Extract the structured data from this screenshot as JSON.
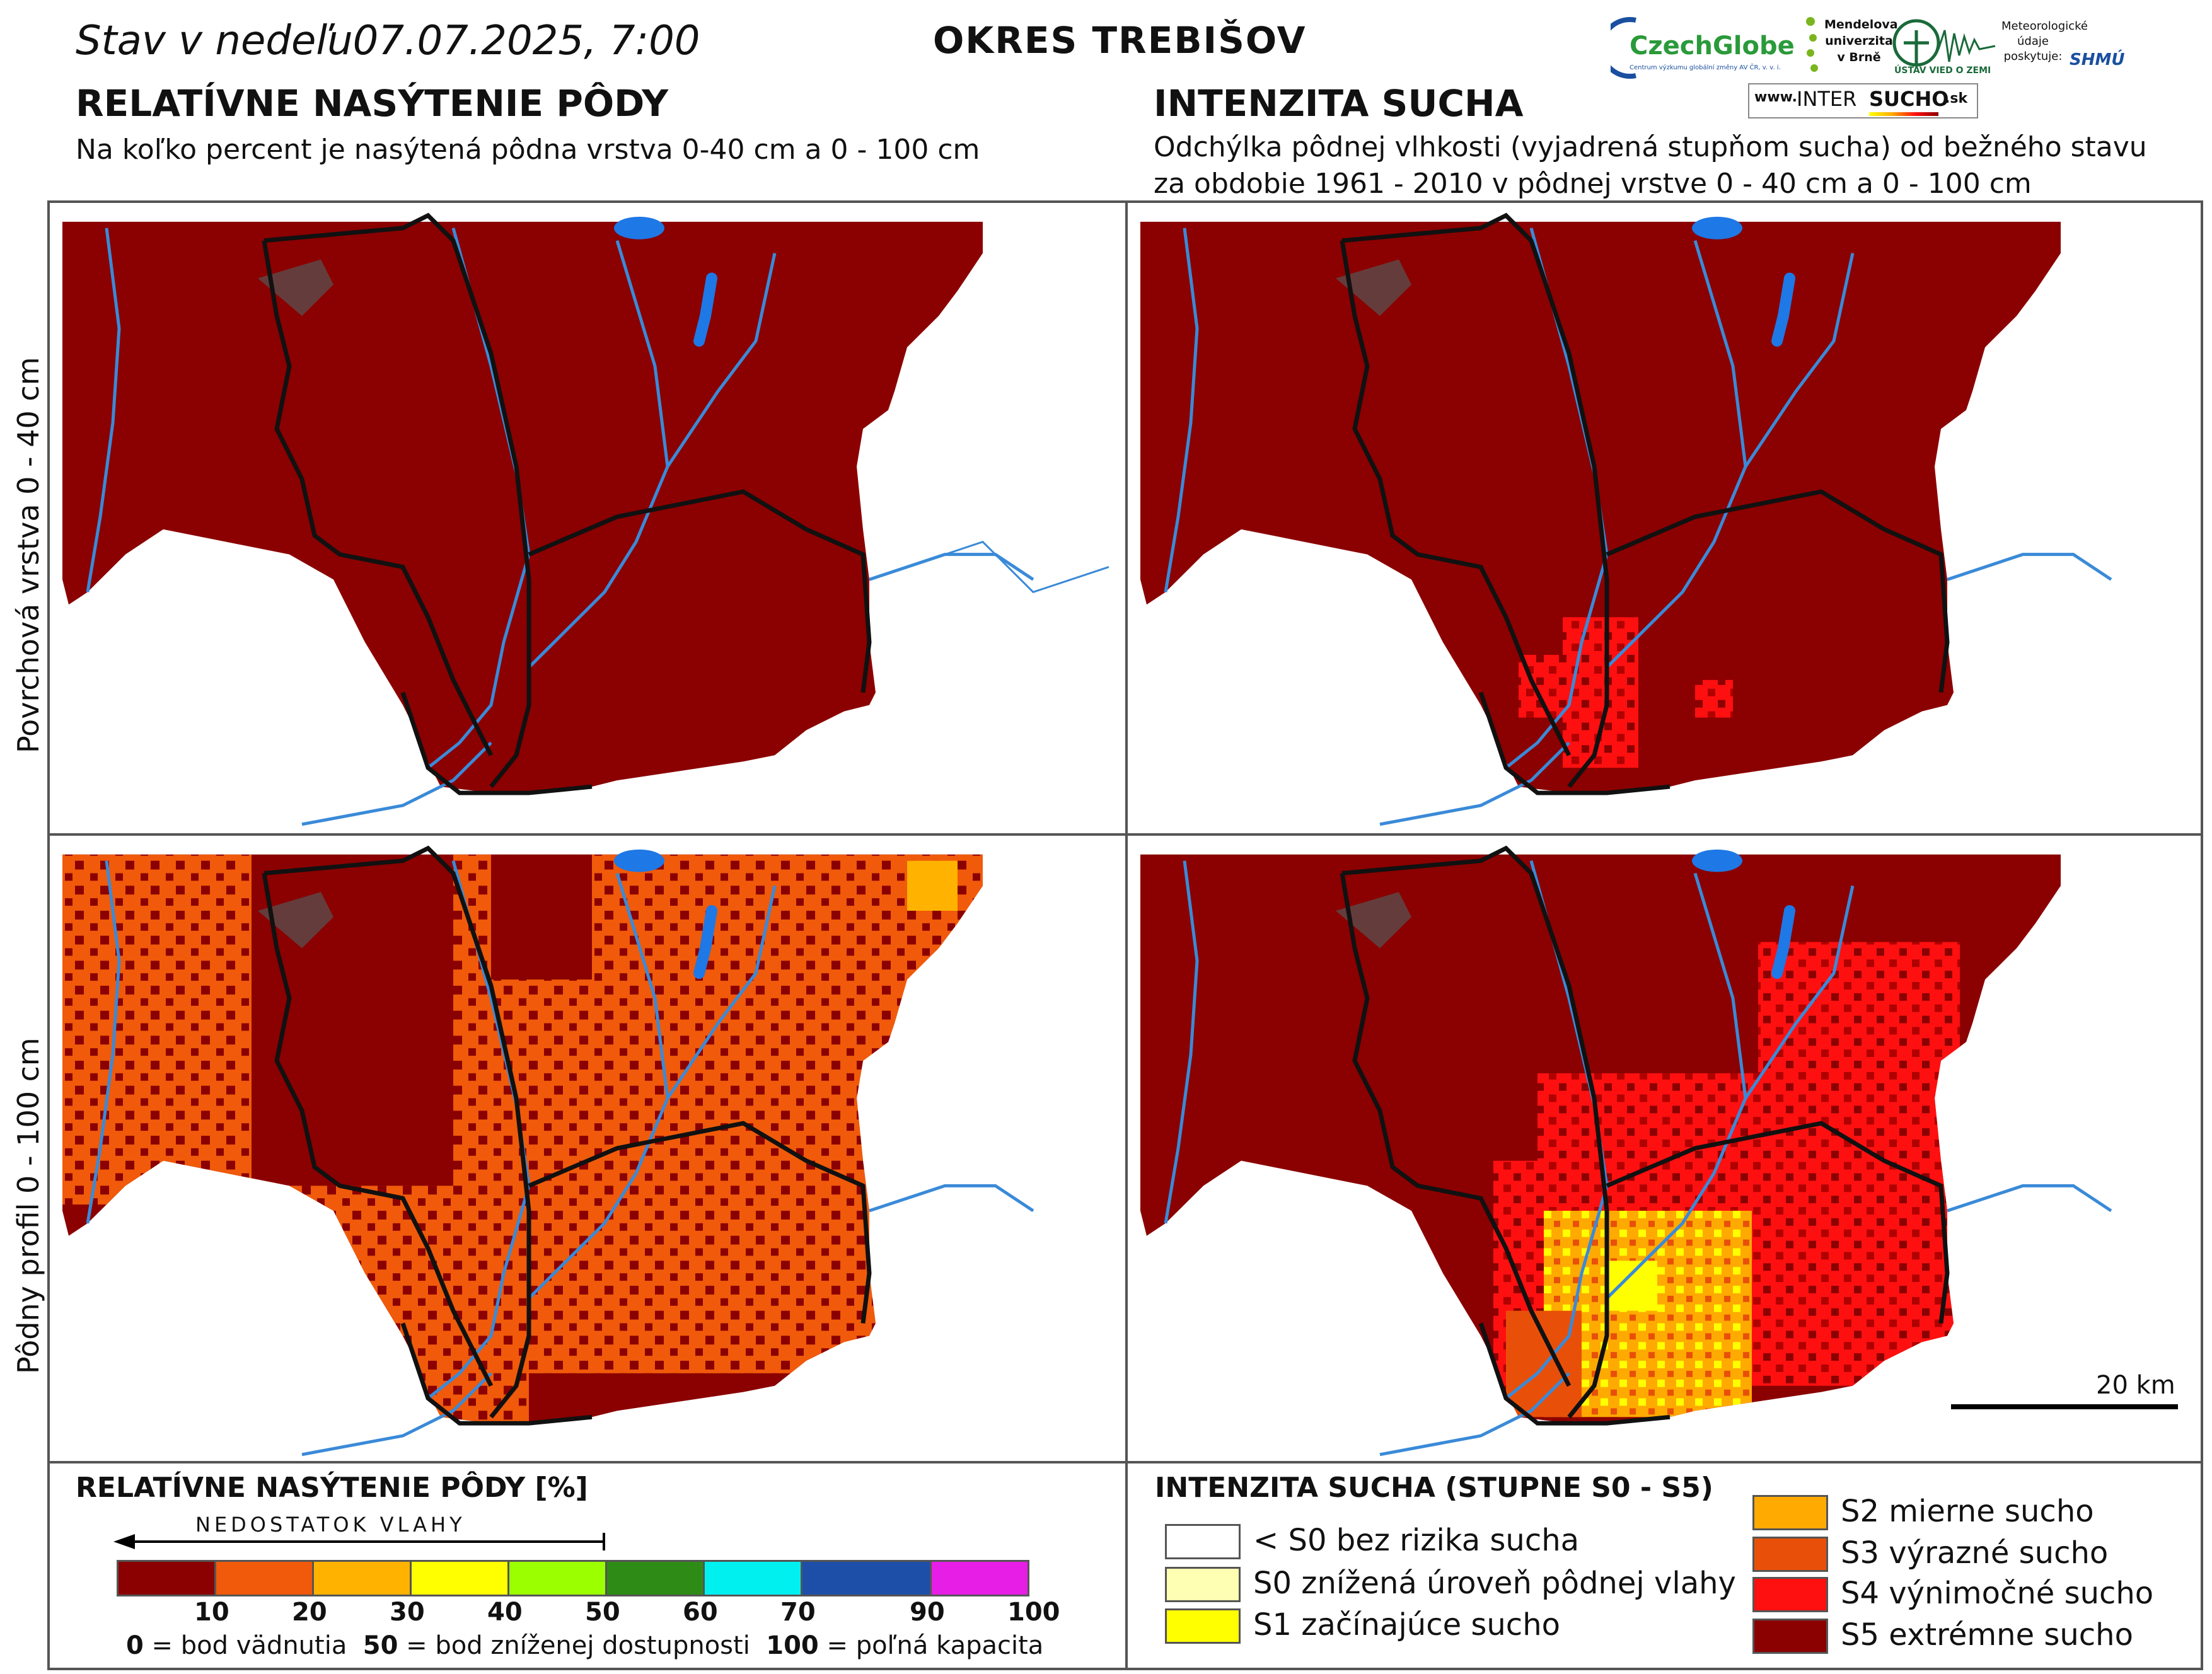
{
  "header": {
    "date_line": "Stav v nedeľu07.07.2025, 7:00",
    "district": "OKRES  TREBIŠOV",
    "left_title": "RELATÍVNE NASÝTENIE PÔDY",
    "left_subtitle": "Na koľko percent je nasýtená pôdna vrstva 0-40 cm a 0 - 100 cm",
    "right_title": "INTENZITA SUCHA",
    "right_subtitle_1": "Odchýlka pôdnej vlhkosti (vyjadrená stupňom sucha) od bežného stavu",
    "right_subtitle_2": "za obdobie 1961 - 2010 v pôdnej vrstve 0 - 40 cm a 0 - 100 cm"
  },
  "logos": {
    "czechglobe": "CzechGlobe",
    "czechglobe_sub": "Centrum výzkumu globální změny AV ČR, v. v. i.",
    "mendel": "Mendelova univerzita v Brně",
    "usv": "ÚSTAV VIED O ZEMI",
    "shmu_note": "Meteorologické údaje poskytuje:",
    "shmu": "SHMÚ",
    "intersucho_prefix": "www.",
    "intersucho_inter": "INTER",
    "intersucho_sucho": "SUCHO",
    "intersucho_suffix": ".sk"
  },
  "row_labels": {
    "top": "Povrchová vrstva 0 - 40 cm",
    "bottom": "Pôdny profil 0 - 100 cm"
  },
  "scale_bar": "20 km",
  "legend_left": {
    "title": "RELATÍVNE NASÝTENIE PÔDY [%]",
    "arrow_label": "NEDOSTATOK VLAHY",
    "colors": [
      "#8b0000",
      "#f05a0a",
      "#ffb300",
      "#ffff00",
      "#9cff00",
      "#2e8b16",
      "#00f0f0",
      "#1d4fa8",
      "#e61ee6"
    ],
    "ticks": [
      "10",
      "20",
      "30",
      "40",
      "50",
      "60",
      "70",
      "90",
      "100"
    ],
    "note_0_val": "0",
    "note_0_text": " = bod vädnutia",
    "note_50_val": "50",
    "note_50_text": " = bod zníženej dostupnosti",
    "note_100_val": "100",
    "note_100_text": " = poľná kapacita"
  },
  "legend_right": {
    "title": "INTENZITA SUCHA (STUPNE S0 - S5)",
    "items": [
      {
        "label": "< S0 bez rizika sucha",
        "color": "#ffffff"
      },
      {
        "label": "S0 znížená úroveň pôdnej vlahy",
        "color": "#ffffb4"
      },
      {
        "label": "S1 začínajúce sucho",
        "color": "#ffff00"
      },
      {
        "label": "S2 mierne sucho",
        "color": "#ffaa00"
      },
      {
        "label": "S3 výrazné sucho",
        "color": "#e8500a"
      },
      {
        "label": "S4 výnimočné sucho",
        "color": "#ff1010"
      },
      {
        "label": "S5 extrémne sucho",
        "color": "#8b0000"
      }
    ]
  }
}
